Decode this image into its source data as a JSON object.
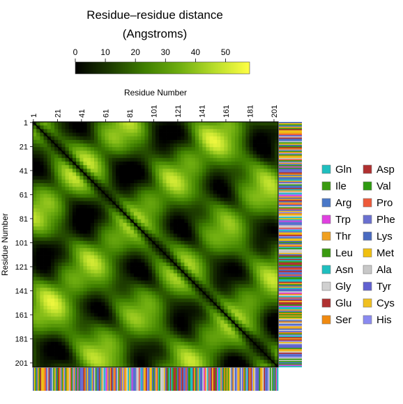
{
  "chart_data": {
    "type": "heatmap",
    "title": "Residue–residue distance",
    "subtitle": "(Angstroms)",
    "xlabel": "Residue Number",
    "ylabel": "Residue Number",
    "residue_range": [
      1,
      204
    ],
    "x_ticks": [
      1,
      21,
      41,
      61,
      81,
      101,
      121,
      141,
      161,
      181,
      201
    ],
    "y_ticks": [
      1,
      21,
      41,
      61,
      81,
      101,
      121,
      141,
      161,
      181,
      201
    ],
    "colorbar": {
      "ticks": [
        0,
        10,
        20,
        30,
        40,
        50
      ],
      "range": [
        0,
        58
      ],
      "colors": [
        "#000000",
        "#1c3a00",
        "#3f7f00",
        "#6fae10",
        "#b8dd2a",
        "#ffff44"
      ]
    },
    "legend": {
      "placement": "right",
      "entries": [
        {
          "name": "Gln",
          "color": "#1fbfbf"
        },
        {
          "name": "Asp",
          "color": "#b03030"
        },
        {
          "name": "Ile",
          "color": "#3a9a10"
        },
        {
          "name": "Val",
          "color": "#2e9a10"
        },
        {
          "name": "Arg",
          "color": "#4a78c8"
        },
        {
          "name": "Pro",
          "color": "#ee5a3a"
        },
        {
          "name": "Trp",
          "color": "#e040e0"
        },
        {
          "name": "Phe",
          "color": "#6a70d0"
        },
        {
          "name": "Thr",
          "color": "#f0a020"
        },
        {
          "name": "Lys",
          "color": "#4a6ac0"
        },
        {
          "name": "Leu",
          "color": "#3a9a10"
        },
        {
          "name": "Met",
          "color": "#f0c010"
        },
        {
          "name": "Asn",
          "color": "#1fbfbf"
        },
        {
          "name": "Ala",
          "color": "#c8c8c8"
        },
        {
          "name": "Gly",
          "color": "#d0d0d0"
        },
        {
          "name": "Tyr",
          "color": "#6060d0"
        },
        {
          "name": "Glu",
          "color": "#b03030"
        },
        {
          "name": "Cys",
          "color": "#f0c020"
        },
        {
          "name": "Ser",
          "color": "#f08a10"
        },
        {
          "name": "His",
          "color": "#8a8af0"
        }
      ]
    },
    "sequence_bar": "Sequence strip uses legend colors per residue"
  }
}
